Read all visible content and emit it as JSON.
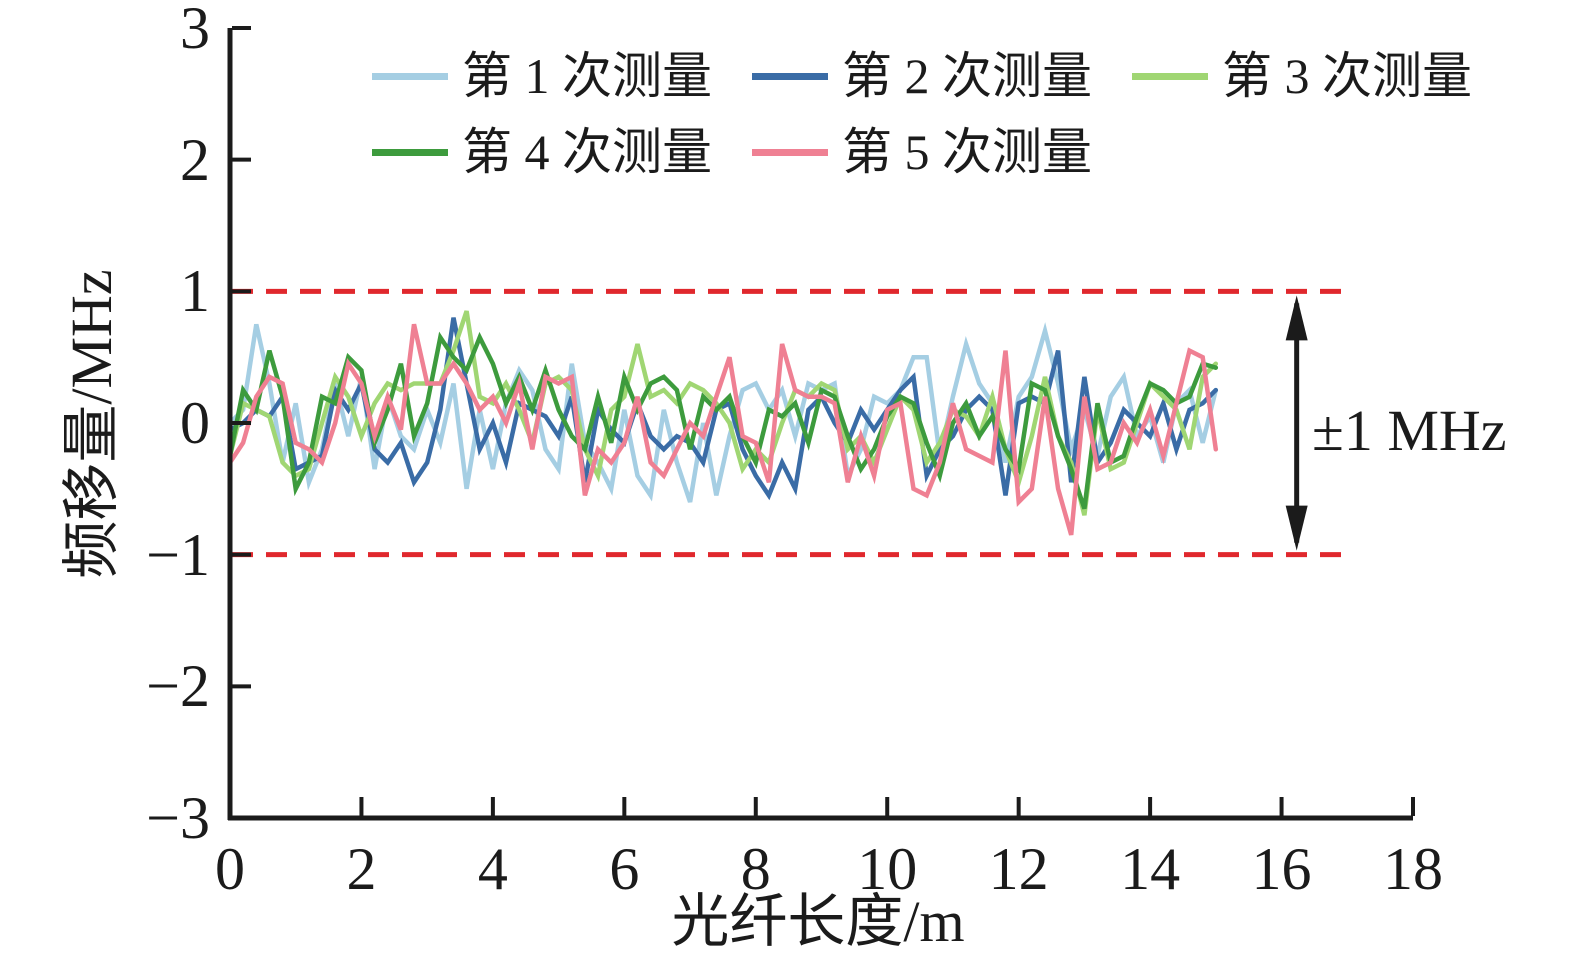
{
  "figure": {
    "background": "#ffffff",
    "text_color": "#1b1b1b",
    "axis_color": "#1b1b1b"
  },
  "chart_data": {
    "type": "line",
    "title": "",
    "xlabel": "光纤长度/m",
    "ylabel": "频移量/MHz",
    "xlim": [
      0,
      18
    ],
    "ylim": [
      -3,
      3
    ],
    "grid": false,
    "x_tick_values": [
      0,
      2,
      4,
      6,
      8,
      10,
      12,
      14,
      16,
      18
    ],
    "x_tick_labels": [
      "0",
      "2",
      "4",
      "6",
      "8",
      "10",
      "12",
      "14",
      "16",
      "18"
    ],
    "y_tick_values": [
      3,
      2,
      1,
      0,
      -1,
      -2,
      -3
    ],
    "y_tick_labels": [
      "3",
      "2",
      "1",
      "0",
      "−1",
      "−2",
      "−3"
    ],
    "legend": {
      "position": "top-inside",
      "rows": [
        [
          0,
          1,
          2
        ],
        [
          3,
          4
        ]
      ]
    },
    "x_start": 0,
    "x_step": 0.2,
    "series": [
      {
        "name": "第 1 次测量",
        "color": "#a5cee3",
        "values": [
          0.0,
          0.1,
          0.75,
          0.3,
          -0.3,
          0.15,
          -0.45,
          -0.2,
          0.3,
          -0.1,
          0.35,
          -0.35,
          0.2,
          -0.1,
          -0.2,
          0.1,
          -0.15,
          0.3,
          -0.5,
          0.1,
          -0.35,
          0.15,
          0.4,
          0.25,
          -0.2,
          -0.35,
          0.45,
          -0.15,
          -0.3,
          -0.5,
          0.1,
          -0.4,
          -0.55,
          0.1,
          -0.3,
          -0.6,
          0.0,
          -0.55,
          -0.1,
          0.25,
          0.3,
          0.1,
          0.25,
          -0.1,
          0.3,
          0.25,
          0.3,
          -0.4,
          -0.2,
          0.2,
          0.15,
          0.25,
          0.5,
          0.5,
          -0.25,
          0.2,
          0.6,
          0.3,
          0.15,
          -0.3,
          0.2,
          0.35,
          0.7,
          0.3,
          -0.2,
          0.1,
          -0.25,
          0.2,
          0.35,
          -0.1,
          0.05,
          -0.3,
          0.15,
          0.25,
          -0.15,
          0.25
        ]
      },
      {
        "name": "第 2 次测量",
        "color": "#3a6ca6",
        "values": [
          -0.05,
          0.0,
          0.1,
          0.05,
          0.2,
          -0.35,
          -0.3,
          -0.25,
          0.25,
          0.1,
          0.3,
          -0.2,
          -0.3,
          -0.15,
          -0.45,
          -0.3,
          0.1,
          0.8,
          0.3,
          -0.2,
          0.0,
          -0.3,
          0.15,
          0.1,
          0.05,
          -0.1,
          0.2,
          -0.45,
          0.1,
          -0.05,
          -0.15,
          0.15,
          -0.1,
          -0.2,
          -0.1,
          -0.15,
          -0.3,
          0.1,
          0.15,
          -0.2,
          -0.4,
          -0.55,
          -0.3,
          -0.5,
          0.1,
          0.2,
          0.0,
          -0.15,
          0.1,
          -0.05,
          0.1,
          0.25,
          0.35,
          -0.4,
          -0.2,
          -0.1,
          0.1,
          0.2,
          0.1,
          -0.55,
          0.15,
          0.2,
          0.15,
          0.55,
          -0.45,
          0.35,
          -0.3,
          -0.15,
          0.1,
          0.0,
          -0.1,
          0.15,
          -0.2,
          0.1,
          0.15,
          0.25
        ]
      },
      {
        "name": "第 3 次测量",
        "color": "#a0d673",
        "values": [
          -0.25,
          0.15,
          0.1,
          0.05,
          -0.3,
          -0.4,
          -0.35,
          0.0,
          0.35,
          0.2,
          -0.1,
          0.15,
          0.3,
          0.25,
          0.3,
          0.3,
          0.3,
          0.55,
          0.85,
          0.2,
          0.15,
          0.3,
          0.1,
          -0.15,
          0.3,
          0.35,
          0.25,
          -0.2,
          -0.4,
          0.1,
          0.2,
          0.6,
          0.2,
          0.25,
          0.15,
          0.3,
          0.25,
          0.15,
          0.0,
          -0.35,
          -0.2,
          -0.3,
          0.0,
          0.25,
          0.2,
          0.3,
          0.25,
          -0.2,
          -0.1,
          -0.3,
          -0.05,
          0.2,
          0.1,
          -0.3,
          -0.15,
          0.1,
          0.05,
          -0.1,
          0.2,
          -0.2,
          -0.45,
          -0.1,
          0.35,
          -0.1,
          -0.3,
          -0.7,
          0.1,
          -0.35,
          -0.3,
          0.0,
          0.3,
          0.2,
          0.1,
          -0.2,
          0.35,
          0.45
        ]
      },
      {
        "name": "第 4 次测量",
        "color": "#3d9b3d",
        "values": [
          -0.25,
          0.25,
          0.1,
          0.55,
          0.2,
          -0.5,
          -0.3,
          0.2,
          0.15,
          0.5,
          0.4,
          -0.15,
          0.1,
          0.45,
          -0.1,
          0.15,
          0.65,
          0.5,
          0.4,
          0.65,
          0.45,
          0.15,
          0.35,
          0.1,
          0.4,
          0.1,
          -0.1,
          -0.2,
          0.2,
          -0.15,
          0.35,
          0.1,
          0.3,
          0.35,
          0.25,
          -0.2,
          0.2,
          0.1,
          0.2,
          -0.1,
          -0.3,
          0.1,
          0.05,
          0.15,
          -0.15,
          0.25,
          0.2,
          -0.1,
          -0.35,
          -0.2,
          0.05,
          0.2,
          0.15,
          -0.15,
          -0.4,
          0.0,
          0.15,
          -0.1,
          0.05,
          -0.2,
          -0.35,
          0.3,
          0.25,
          -0.1,
          -0.35,
          -0.65,
          0.15,
          -0.3,
          -0.25,
          0.05,
          0.3,
          0.25,
          0.15,
          0.2,
          0.45,
          0.42
        ]
      },
      {
        "name": "第 5 次测量",
        "color": "#ef8093",
        "values": [
          -0.3,
          -0.15,
          0.2,
          0.35,
          0.3,
          -0.15,
          -0.2,
          -0.3,
          0.0,
          0.45,
          0.3,
          -0.1,
          0.2,
          -0.05,
          0.75,
          0.3,
          0.3,
          0.45,
          0.3,
          0.1,
          0.2,
          0.0,
          0.3,
          -0.2,
          0.35,
          0.3,
          0.35,
          -0.55,
          -0.2,
          -0.3,
          -0.15,
          0.2,
          -0.3,
          -0.4,
          -0.2,
          0.0,
          -0.1,
          0.2,
          0.5,
          -0.1,
          -0.15,
          -0.45,
          0.6,
          0.25,
          0.2,
          0.2,
          0.15,
          -0.45,
          -0.1,
          -0.4,
          0.1,
          0.15,
          -0.5,
          -0.55,
          -0.3,
          0.15,
          -0.2,
          -0.25,
          -0.3,
          0.55,
          -0.6,
          -0.5,
          0.2,
          -0.5,
          -0.85,
          0.2,
          -0.35,
          -0.3,
          0.0,
          -0.15,
          0.1,
          -0.25,
          0.15,
          0.55,
          0.5,
          -0.2
        ]
      }
    ],
    "reference_lines": [
      {
        "y": 1,
        "color": "#e0282d",
        "style": "dashed"
      },
      {
        "y": -1,
        "color": "#e0282d",
        "style": "dashed"
      }
    ],
    "annotation": {
      "text": "±1 MHz",
      "arrow_x_m": 16.23,
      "arrow_from_y": 1,
      "arrow_to_y": -1,
      "arrow_color": "#1b1b1b"
    }
  }
}
